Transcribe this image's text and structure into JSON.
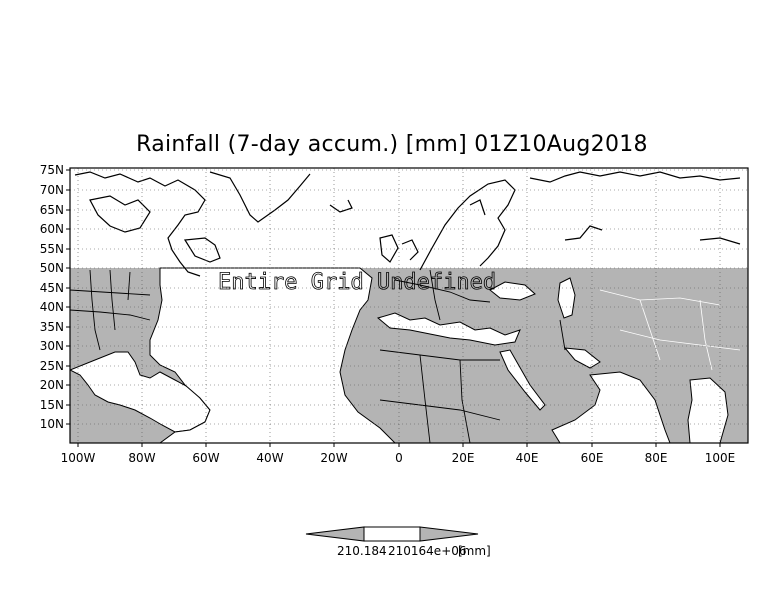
{
  "title": "Rainfall (7-day accum.) [mm] 01Z10Aug2018",
  "overlay_text": "Entire Grid Undefined",
  "map": {
    "lat_labels": [
      "75N",
      "70N",
      "65N",
      "60N",
      "55N",
      "50N",
      "45N",
      "40N",
      "35N",
      "30N",
      "25N",
      "20N",
      "15N",
      "10N"
    ],
    "lon_labels": [
      "100W",
      "80W",
      "60W",
      "40W",
      "20W",
      "0",
      "20E",
      "40E",
      "60E",
      "80E",
      "100E"
    ],
    "undefined_fill": "#b4b4b4",
    "grid_style": "dotted"
  },
  "colorbar": {
    "label_left": "210.184",
    "label_right": "210164e+06",
    "unit": "[mm]"
  }
}
